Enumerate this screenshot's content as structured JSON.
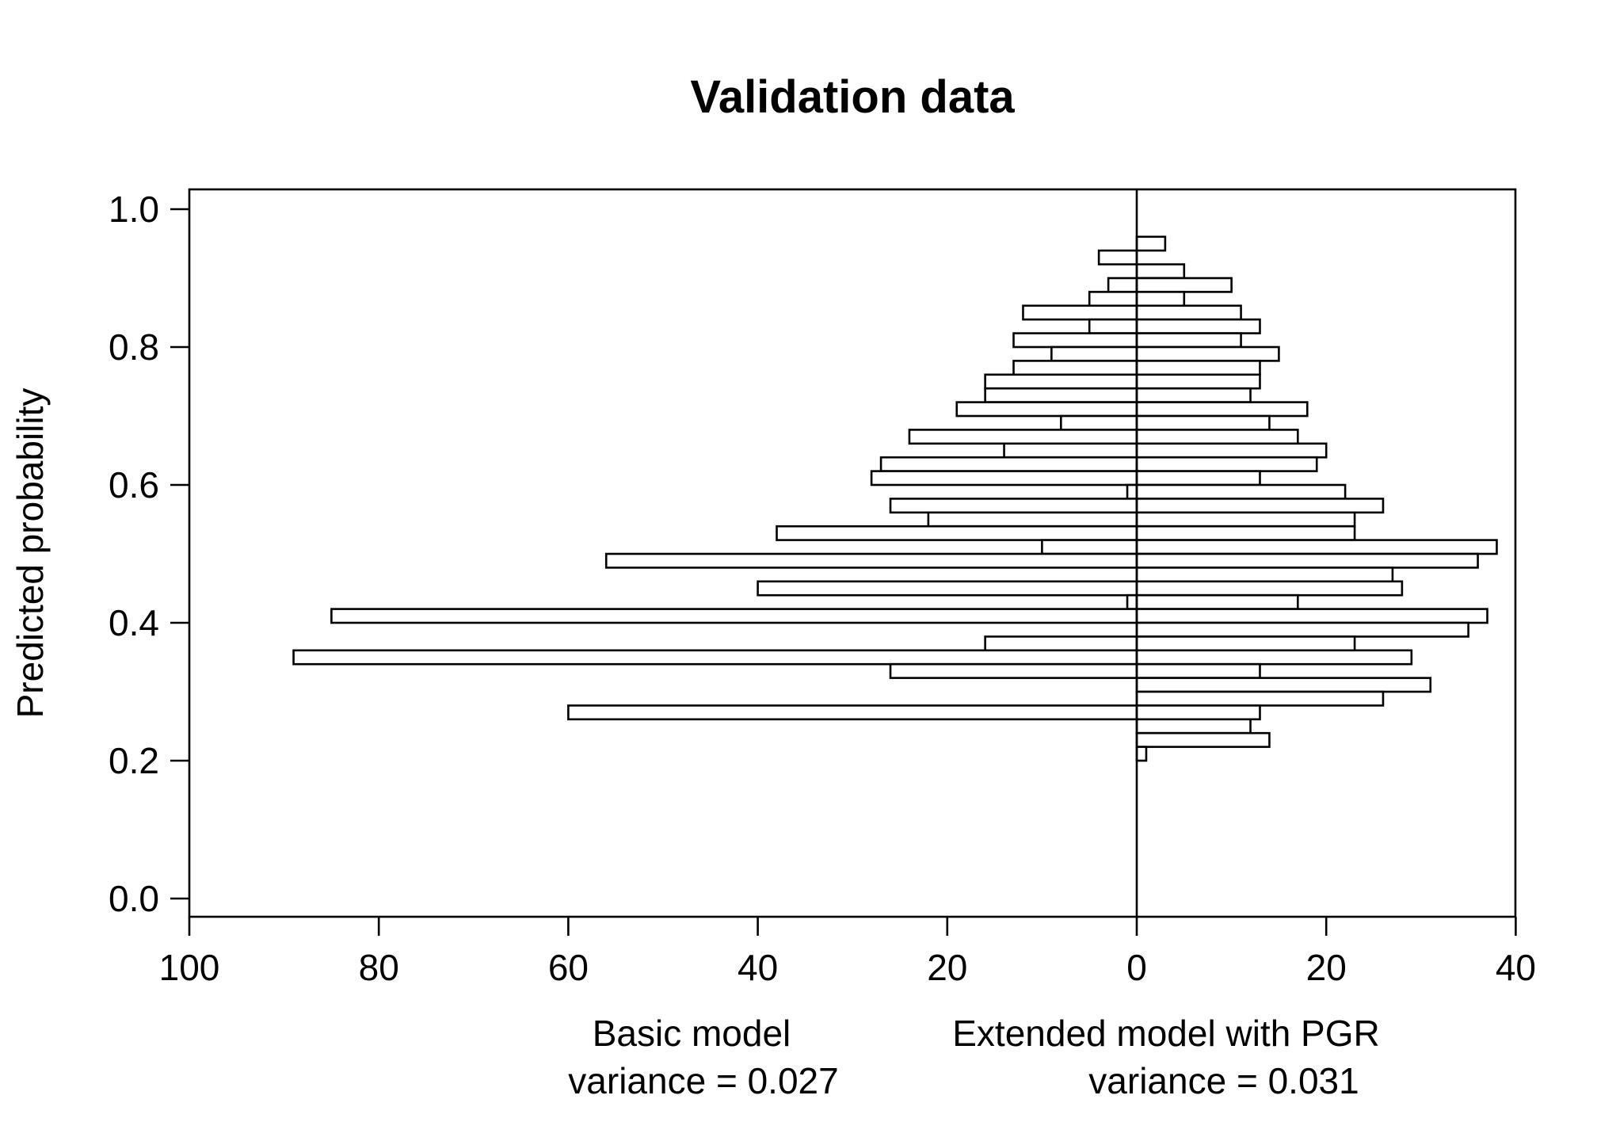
{
  "chart_data": {
    "type": "bar",
    "orientation": "horizontal-back-to-back",
    "title": "Validation data",
    "ylabel": "Predicted probability",
    "ylim": [
      0.0,
      1.0
    ],
    "y_ticks": [
      "0.0",
      "0.2",
      "0.4",
      "0.6",
      "0.8",
      "1.0"
    ],
    "x_ticks_left": [
      "100",
      "80",
      "60",
      "40",
      "20",
      "0"
    ],
    "x_ticks_right": [
      "20",
      "40"
    ],
    "left_label": "Basic model",
    "left_stat": "variance = 0.027",
    "right_label": "Extended model with PGR",
    "right_stat": "variance = 0.031",
    "bin_width": 0.02,
    "series": [
      {
        "name": "Basic model",
        "side": "left",
        "bins": [
          {
            "y": 0.92,
            "value": 4
          },
          {
            "y": 0.88,
            "value": 3
          },
          {
            "y": 0.86,
            "value": 5
          },
          {
            "y": 0.84,
            "value": 12
          },
          {
            "y": 0.82,
            "value": 5
          },
          {
            "y": 0.8,
            "value": 13
          },
          {
            "y": 0.78,
            "value": 9
          },
          {
            "y": 0.76,
            "value": 13
          },
          {
            "y": 0.74,
            "value": 16
          },
          {
            "y": 0.72,
            "value": 16
          },
          {
            "y": 0.7,
            "value": 19
          },
          {
            "y": 0.68,
            "value": 8
          },
          {
            "y": 0.66,
            "value": 24
          },
          {
            "y": 0.64,
            "value": 14
          },
          {
            "y": 0.62,
            "value": 27
          },
          {
            "y": 0.6,
            "value": 28
          },
          {
            "y": 0.58,
            "value": 1
          },
          {
            "y": 0.56,
            "value": 26
          },
          {
            "y": 0.54,
            "value": 22
          },
          {
            "y": 0.52,
            "value": 38
          },
          {
            "y": 0.5,
            "value": 10
          },
          {
            "y": 0.48,
            "value": 56
          },
          {
            "y": 0.44,
            "value": 40
          },
          {
            "y": 0.42,
            "value": 1
          },
          {
            "y": 0.4,
            "value": 85
          },
          {
            "y": 0.36,
            "value": 16
          },
          {
            "y": 0.34,
            "value": 89
          },
          {
            "y": 0.32,
            "value": 26
          },
          {
            "y": 0.26,
            "value": 60
          }
        ]
      },
      {
        "name": "Extended model with PGR",
        "side": "right",
        "bins": [
          {
            "y": 0.94,
            "value": 3
          },
          {
            "y": 0.9,
            "value": 5
          },
          {
            "y": 0.88,
            "value": 10
          },
          {
            "y": 0.86,
            "value": 5
          },
          {
            "y": 0.84,
            "value": 11
          },
          {
            "y": 0.82,
            "value": 13
          },
          {
            "y": 0.8,
            "value": 11
          },
          {
            "y": 0.78,
            "value": 15
          },
          {
            "y": 0.76,
            "value": 13
          },
          {
            "y": 0.74,
            "value": 13
          },
          {
            "y": 0.72,
            "value": 12
          },
          {
            "y": 0.7,
            "value": 18
          },
          {
            "y": 0.68,
            "value": 14
          },
          {
            "y": 0.66,
            "value": 17
          },
          {
            "y": 0.64,
            "value": 20
          },
          {
            "y": 0.62,
            "value": 19
          },
          {
            "y": 0.6,
            "value": 13
          },
          {
            "y": 0.58,
            "value": 22
          },
          {
            "y": 0.56,
            "value": 26
          },
          {
            "y": 0.54,
            "value": 23
          },
          {
            "y": 0.52,
            "value": 23
          },
          {
            "y": 0.5,
            "value": 38
          },
          {
            "y": 0.48,
            "value": 36
          },
          {
            "y": 0.46,
            "value": 27
          },
          {
            "y": 0.44,
            "value": 28
          },
          {
            "y": 0.42,
            "value": 17
          },
          {
            "y": 0.4,
            "value": 37
          },
          {
            "y": 0.38,
            "value": 35
          },
          {
            "y": 0.36,
            "value": 23
          },
          {
            "y": 0.34,
            "value": 29
          },
          {
            "y": 0.32,
            "value": 13
          },
          {
            "y": 0.3,
            "value": 31
          },
          {
            "y": 0.28,
            "value": 26
          },
          {
            "y": 0.26,
            "value": 13
          },
          {
            "y": 0.24,
            "value": 12
          },
          {
            "y": 0.22,
            "value": 14
          },
          {
            "y": 0.2,
            "value": 1
          }
        ]
      }
    ]
  }
}
